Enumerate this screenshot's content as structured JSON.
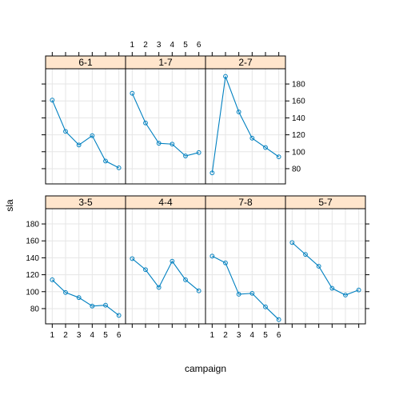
{
  "chart_data": {
    "type": "line",
    "xlabel": "campaign",
    "ylabel": "sla",
    "x": [
      1,
      2,
      3,
      4,
      5,
      6
    ],
    "x_ticks": [
      "1",
      "2",
      "3",
      "4",
      "5",
      "6"
    ],
    "y_ticks": [
      "80",
      "100",
      "120",
      "140",
      "160",
      "180"
    ],
    "xlim": [
      0.5,
      6.5
    ],
    "ylim": [
      62,
      198
    ],
    "grid": true,
    "colors": {
      "line": "#0080c0",
      "strip": "#ffe5cc",
      "grid": "#e6e6e6",
      "border": "#000000"
    },
    "panels": [
      {
        "label": "6-1",
        "values": [
          161,
          124,
          108,
          119,
          89,
          81
        ]
      },
      {
        "label": "1-7",
        "values": [
          169,
          134,
          110,
          109,
          95,
          99
        ]
      },
      {
        "label": "2-7",
        "values": [
          75,
          189,
          147,
          116,
          105,
          94
        ]
      },
      {
        "label": "3-5",
        "values": [
          114,
          99,
          93,
          83,
          84,
          72
        ]
      },
      {
        "label": "4-4",
        "values": [
          139,
          126,
          105,
          136,
          114,
          101
        ]
      },
      {
        "label": "7-8",
        "values": [
          142,
          134,
          97,
          98,
          82,
          67
        ]
      },
      {
        "label": "5-7",
        "values": [
          158,
          144,
          130,
          104,
          96,
          102
        ]
      }
    ]
  }
}
